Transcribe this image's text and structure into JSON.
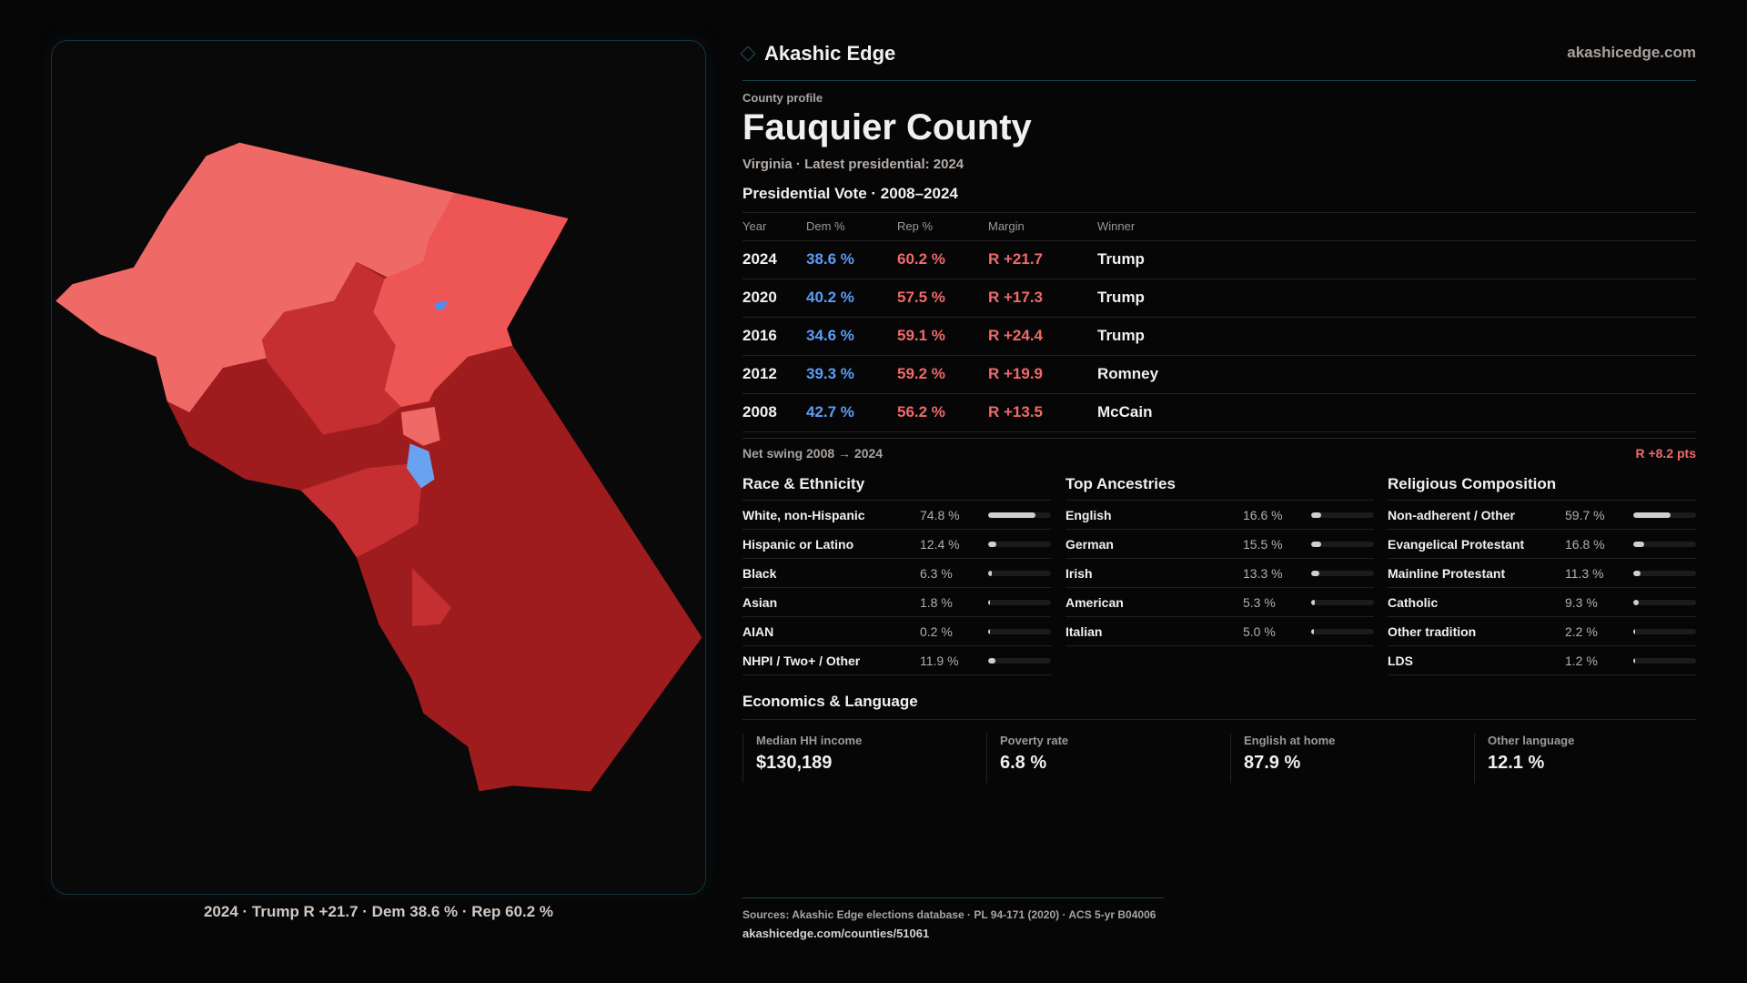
{
  "brand": {
    "name": "Akashic Edge",
    "site": "akashicedge.com"
  },
  "profile": {
    "kicker": "County profile",
    "title": "Fauquier County",
    "subtitle": "Virginia · Latest presidential: 2024"
  },
  "vote": {
    "heading": "Presidential Vote · 2008–2024",
    "columns": [
      "Year",
      "Dem %",
      "Rep %",
      "Margin",
      "Winner"
    ],
    "rows": [
      {
        "year": "2024",
        "dem": "38.6 %",
        "rep": "60.2 %",
        "margin": "R +21.7",
        "winner": "Trump"
      },
      {
        "year": "2020",
        "dem": "40.2 %",
        "rep": "57.5 %",
        "margin": "R +17.3",
        "winner": "Trump"
      },
      {
        "year": "2016",
        "dem": "34.6 %",
        "rep": "59.1 %",
        "margin": "R +24.4",
        "winner": "Trump"
      },
      {
        "year": "2012",
        "dem": "39.3 %",
        "rep": "59.2 %",
        "margin": "R +19.9",
        "winner": "Romney"
      },
      {
        "year": "2008",
        "dem": "42.7 %",
        "rep": "56.2 %",
        "margin": "R +13.5",
        "winner": "McCain"
      }
    ],
    "swing_label": "Net swing 2008 → 2024",
    "swing_value": "R +8.2 pts"
  },
  "sections": [
    {
      "heading": "Race & Ethnicity",
      "items": [
        {
          "label": "White, non-Hispanic",
          "value": "74.8 %",
          "pct": 74.8
        },
        {
          "label": "Hispanic or Latino",
          "value": "12.4 %",
          "pct": 12.4
        },
        {
          "label": "Black",
          "value": "6.3 %",
          "pct": 6.3
        },
        {
          "label": "Asian",
          "value": "1.8 %",
          "pct": 1.8
        },
        {
          "label": "AIAN",
          "value": "0.2 %",
          "pct": 0.2
        },
        {
          "label": "NHPI / Two+ / Other",
          "value": "11.9 %",
          "pct": 11.9
        }
      ]
    },
    {
      "heading": "Top Ancestries",
      "items": [
        {
          "label": "English",
          "value": "16.6 %",
          "pct": 16.6
        },
        {
          "label": "German",
          "value": "15.5 %",
          "pct": 15.5
        },
        {
          "label": "Irish",
          "value": "13.3 %",
          "pct": 13.3
        },
        {
          "label": "American",
          "value": "5.3 %",
          "pct": 5.3
        },
        {
          "label": "Italian",
          "value": "5.0 %",
          "pct": 5.0
        }
      ]
    },
    {
      "heading": "Religious Composition",
      "items": [
        {
          "label": "Non-adherent / Other",
          "value": "59.7 %",
          "pct": 59.7
        },
        {
          "label": "Evangelical Protestant",
          "value": "16.8 %",
          "pct": 16.8
        },
        {
          "label": "Mainline Protestant",
          "value": "11.3 %",
          "pct": 11.3
        },
        {
          "label": "Catholic",
          "value": "9.3 %",
          "pct": 9.3
        },
        {
          "label": "Other tradition",
          "value": "2.2 %",
          "pct": 2.2
        },
        {
          "label": "LDS",
          "value": "1.2 %",
          "pct": 1.2
        }
      ]
    }
  ],
  "economics": {
    "heading": "Economics & Language",
    "cards": [
      {
        "label": "Median HH income",
        "value": "$130,189"
      },
      {
        "label": "Poverty rate",
        "value": "6.8 %"
      },
      {
        "label": "English at home",
        "value": "87.9 %"
      },
      {
        "label": "Other language",
        "value": "12.1 %"
      }
    ]
  },
  "map": {
    "caption": "2024 · Trump R +21.7 · Dem 38.6 % · Rep 60.2 %",
    "colors": {
      "dark": "#9f1c1e",
      "mid": "#c62f31",
      "light": "#ef6a67",
      "bright": "#ee5656",
      "dem": "#4f8ef0"
    }
  },
  "footer": {
    "sources": "Sources: Akashic Edge elections database · PL 94-171 (2020) · ACS 5-yr B04006",
    "url": "akashicedge.com/counties/51061"
  }
}
